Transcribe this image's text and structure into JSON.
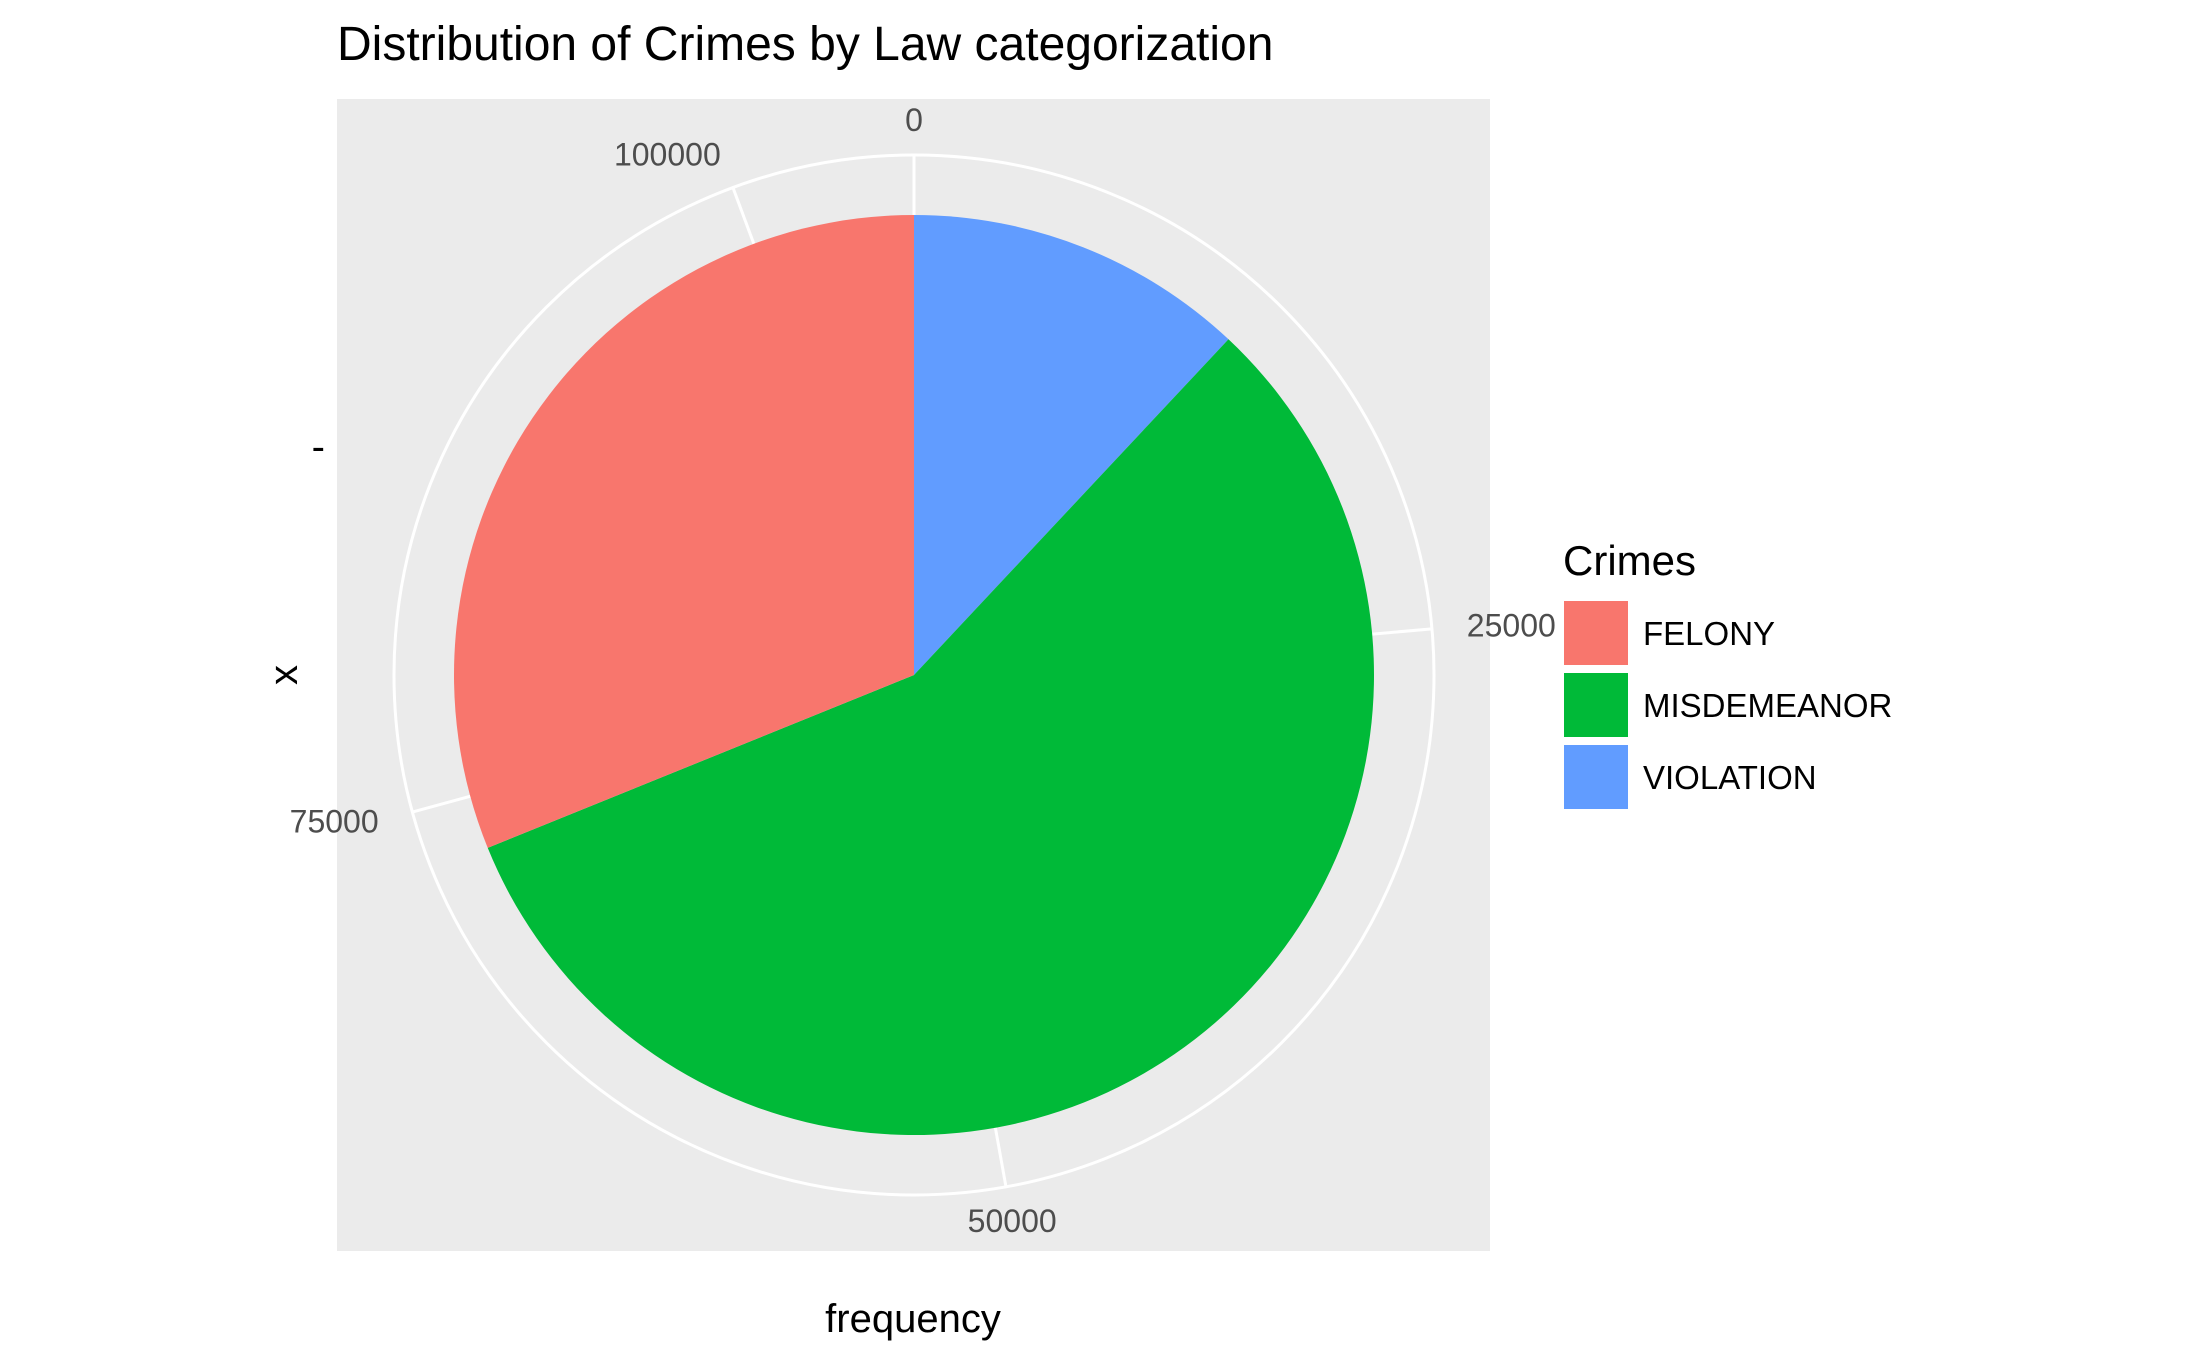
{
  "chart_data": {
    "type": "pie",
    "title": "Distribution of Crimes by Law categorization",
    "xlabel": "frequency",
    "ylabel": "x",
    "y_tick_label": "-",
    "total": 106000,
    "slices": [
      {
        "category": "VIOLATION",
        "value": 12700,
        "color": "#619CFF"
      },
      {
        "category": "MISDEMEANOR",
        "value": 60300,
        "color": "#00BA38"
      },
      {
        "category": "FELONY",
        "value": 33000,
        "color": "#F8766D"
      }
    ],
    "radial_ticks": [
      0,
      25000,
      50000,
      75000,
      100000
    ],
    "legend": {
      "title": "Crimes",
      "position": "right",
      "items": [
        {
          "label": "FELONY",
          "color": "#F8766D"
        },
        {
          "label": "MISDEMEANOR",
          "color": "#00BA38"
        },
        {
          "label": "VIOLATION",
          "color": "#619CFF"
        }
      ]
    },
    "panel_color": "#EBEBEB",
    "grid_color": "#FFFFFF"
  }
}
